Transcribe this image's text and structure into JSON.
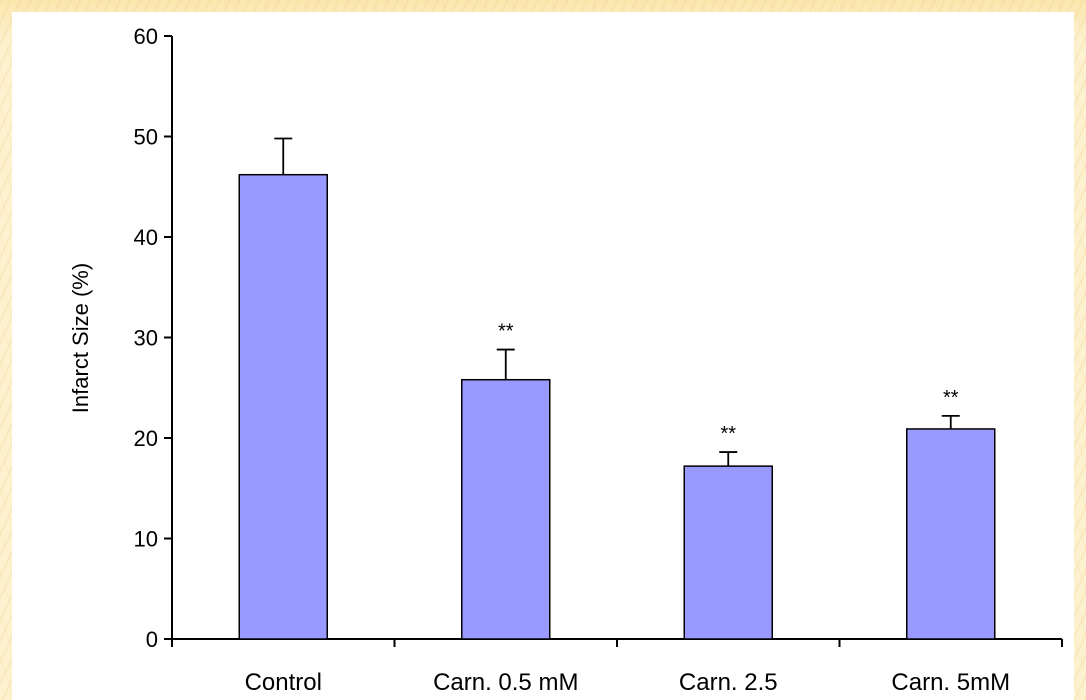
{
  "chart_data": {
    "type": "bar",
    "title": "",
    "xlabel": "",
    "ylabel": "Infarct Size (%)",
    "ylim": [
      0,
      60
    ],
    "yticks": [
      0,
      10,
      20,
      30,
      40,
      50,
      60
    ],
    "categories": [
      "Control",
      "Carn. 0.5 mM",
      "Carn. 2.5",
      "Carn. 5mM"
    ],
    "series": [
      {
        "values": [
          46.2,
          25.8,
          17.2,
          20.9
        ],
        "error": [
          3.6,
          3.0,
          1.4,
          1.3
        ],
        "annotations": [
          "",
          "**",
          "**",
          "**"
        ],
        "color": "#9999ff"
      }
    ],
    "grid": false,
    "legend": "none"
  }
}
